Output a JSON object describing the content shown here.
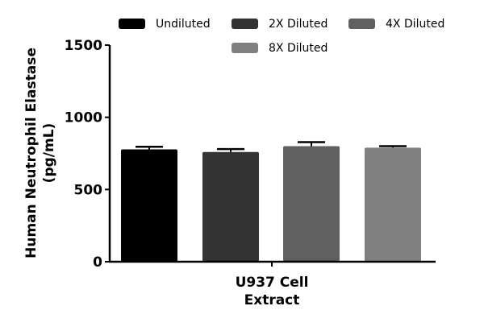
{
  "chart_data": {
    "type": "bar",
    "title": "",
    "xlabel": "U937 Cell Extract",
    "xlabel_lines": [
      "U937 Cell",
      "Extract"
    ],
    "ylabel": "Human Neutrophil Elastase (pg/mL)",
    "ylabel_lines": [
      "Human Neutrophil Elastase",
      "(pg/mL)"
    ],
    "ylim": [
      0,
      1500
    ],
    "yticks": [
      0,
      500,
      1000,
      1500
    ],
    "grid": false,
    "legend_position": "top",
    "categories": [
      "U937 Cell Extract"
    ],
    "series": [
      {
        "name": "Undiluted",
        "values": [
          778
        ],
        "error": [
          18
        ],
        "color": "#000000"
      },
      {
        "name": "2X Diluted",
        "values": [
          760
        ],
        "error": [
          20
        ],
        "color": "#333333"
      },
      {
        "name": "4X Diluted",
        "values": [
          800
        ],
        "error": [
          28
        ],
        "color": "#606060"
      },
      {
        "name": "8X Diluted",
        "values": [
          790
        ],
        "error": [
          10
        ],
        "color": "#808080"
      }
    ]
  }
}
